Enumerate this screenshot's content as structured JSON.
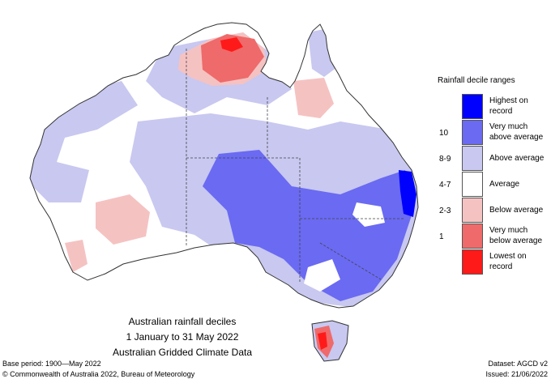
{
  "title": {
    "line1": "Australian rainfall deciles",
    "line2": "1 January to 31 May 2022",
    "line3": "Australian Gridded Climate Data"
  },
  "legend": {
    "title": "Rainfall decile ranges",
    "items": [
      {
        "range": "",
        "label": "Highest on record",
        "color": "#0000ff"
      },
      {
        "range": "10",
        "label": "Very much above average",
        "color": "#6a6af2"
      },
      {
        "range": "8-9",
        "label": "Above average",
        "color": "#c8c8f0"
      },
      {
        "range": "4-7",
        "label": "Average",
        "color": "#ffffff"
      },
      {
        "range": "2-3",
        "label": "Below average",
        "color": "#f5c2c2"
      },
      {
        "range": "1",
        "label": "Very much below average",
        "color": "#ef6a6a"
      },
      {
        "range": "",
        "label": "Lowest on record",
        "color": "#ff1a1a"
      }
    ]
  },
  "footer": {
    "base_period": "Base period: 1900—May 2022",
    "dataset": "Dataset: AGCD v2",
    "copyright": "© Commonwealth of Australia 2022, Bureau of Meteorology",
    "issued": "Issued: 21/06/2022"
  },
  "colors": {
    "highest": "#0000ff",
    "very_much_above": "#6a6af2",
    "above": "#c8c8f0",
    "average": "#ffffff",
    "below": "#f5c2c2",
    "very_much_below": "#ef6a6a",
    "lowest": "#ff1a1a",
    "outline": "#333333"
  }
}
